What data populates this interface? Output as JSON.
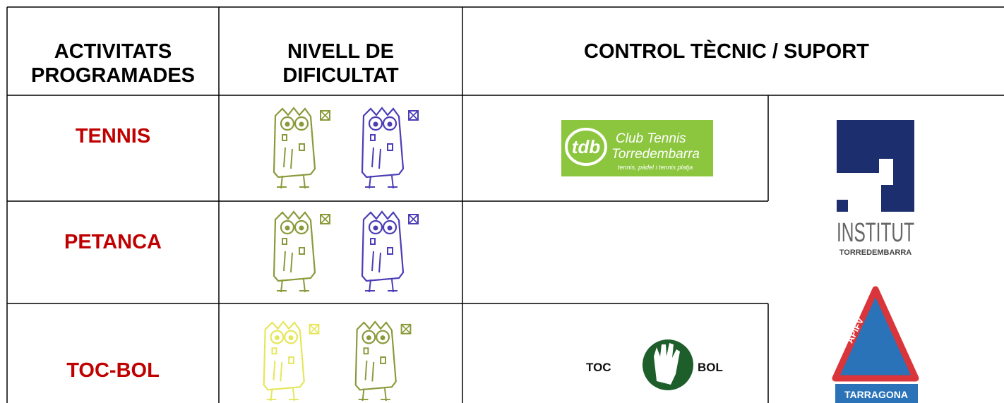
{
  "table": {
    "headers": [
      "ACTIVITATS PROGRAMADES",
      "NIVELL DE DIFICULTAT",
      "CONTROL TÈCNIC / SUPORT"
    ],
    "rows": [
      {
        "activity": "TENNIS"
      },
      {
        "activity": "PETANCA"
      },
      {
        "activity": "TOC-BOL"
      }
    ]
  },
  "logos": {
    "club_tennis": {
      "mark": "tdb",
      "name": "Club Tennis",
      "town": "Torredembarra",
      "tagline": "tennis, pàdel i tennis platja"
    },
    "institut": {
      "name": "INSTITUT",
      "town": "TORREDEMBARRA"
    },
    "tocbol": {
      "left": "TOC",
      "right": "BOL"
    },
    "apifv": {
      "name": "APiFV",
      "region": "TARRAGONA"
    }
  }
}
